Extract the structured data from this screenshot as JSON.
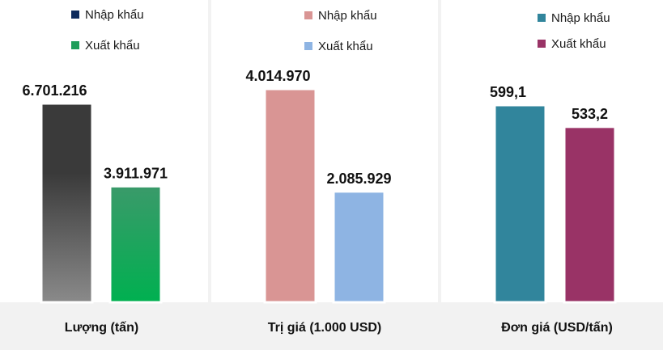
{
  "chart_data": [
    {
      "type": "bar",
      "title": "",
      "category_label": "Lượng (tấn)",
      "legend_position": "top",
      "series": [
        {
          "name": "Nhập khẩu",
          "value": 6701216,
          "value_label": "6.701.216",
          "color": "#3a3a3a",
          "legend_color": "#0d2a5c",
          "gradient_to": "#8a8a8a"
        },
        {
          "name": "Xuất khẩu",
          "value": 3911971,
          "value_label": "3.911.971",
          "color": "#3a9a6a",
          "legend_color": "#1f9e5a",
          "gradient_to": "#00b050"
        }
      ],
      "ylim": [
        0,
        6701216
      ]
    },
    {
      "type": "bar",
      "title": "",
      "category_label": "Trị giá (1.000 USD)",
      "legend_position": "top",
      "series": [
        {
          "name": "Nhập khẩu",
          "value": 4014970,
          "value_label": "4.014.970",
          "color": "#d99594",
          "legend_color": "#d99594"
        },
        {
          "name": "Xuất khẩu",
          "value": 2085929,
          "value_label": "2.085.929",
          "color": "#8eb4e3",
          "legend_color": "#8eb4e3"
        }
      ],
      "ylim": [
        0,
        4014970
      ]
    },
    {
      "type": "bar",
      "title": "",
      "category_label": "Đơn giá (USD/tấn)",
      "legend_position": "top",
      "series": [
        {
          "name": "Nhập khẩu",
          "value": 599.1,
          "value_label": "599,1",
          "color": "#31859c",
          "legend_color": "#31859c"
        },
        {
          "name": "Xuất khẩu",
          "value": 533.2,
          "value_label": "533,2",
          "color": "#993366",
          "legend_color": "#993366"
        }
      ],
      "ylim": [
        0,
        599.1
      ]
    }
  ]
}
